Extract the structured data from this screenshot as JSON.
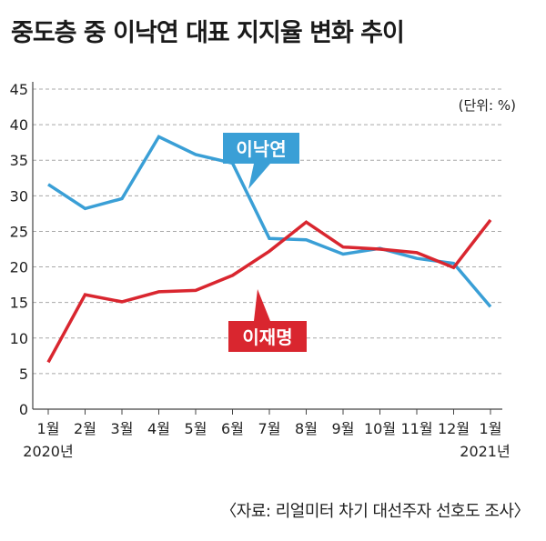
{
  "title": "중도층 중 이낙연 대표 지지율 변화 추이",
  "unit": "(단위: %)",
  "source": "〈자료: 리얼미터 차기 대선주자 선호도 조사〉",
  "chart_data": {
    "type": "line",
    "categories": [
      "1월",
      "2월",
      "3월",
      "4월",
      "5월",
      "6월",
      "7월",
      "8월",
      "9월",
      "10월",
      "11월",
      "12월",
      "1월"
    ],
    "year_labels": {
      "start": "2020년",
      "end": "2021년"
    },
    "yticks": [
      "0",
      "5",
      "10",
      "15",
      "20",
      "25",
      "30",
      "35",
      "40",
      "45"
    ],
    "ylim": [
      0,
      45
    ],
    "grid": true,
    "series": [
      {
        "name": "이낙연",
        "color": "#3a9fd6",
        "values": [
          31.6,
          28.2,
          29.6,
          38.3,
          35.8,
          34.6,
          24.0,
          23.8,
          21.8,
          22.6,
          21.2,
          20.5,
          14.4
        ]
      },
      {
        "name": "이재명",
        "color": "#d9262f",
        "values": [
          6.6,
          16.1,
          15.1,
          16.5,
          16.7,
          18.8,
          22.2,
          26.3,
          22.8,
          22.5,
          22.0,
          19.9,
          26.6
        ]
      }
    ]
  }
}
